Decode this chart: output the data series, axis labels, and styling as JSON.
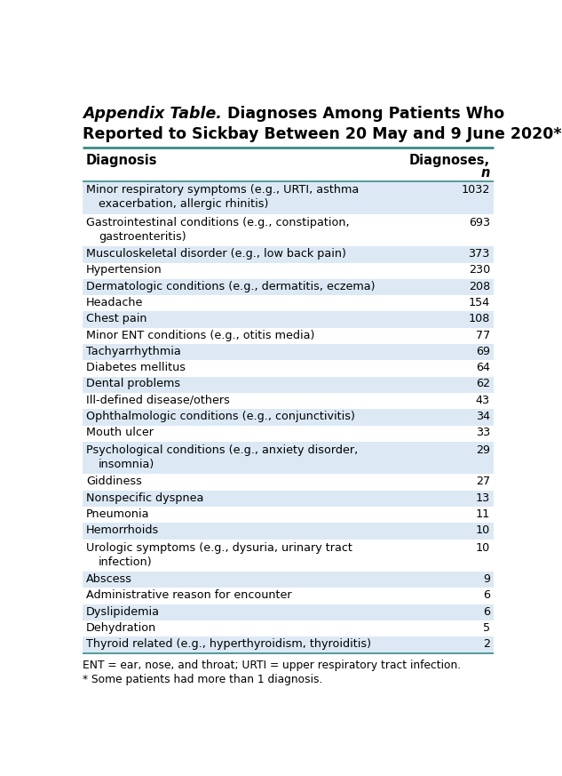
{
  "title_italic": "Appendix Table.",
  "title_regular": " Diagnoses Among Patients Who",
  "title_line2": "Reported to Sickbay Between 20 May and 9 June 2020*",
  "col1_header": "Diagnosis",
  "col2_header_line1": "Diagnoses,",
  "col2_header_line2": "n",
  "rows": [
    {
      "diagnosis": "Minor respiratory symptoms (e.g., URTI, asthma",
      "diagnosis2": "   exacerbation, allergic rhinitis)",
      "n": "1032",
      "shaded": true
    },
    {
      "diagnosis": "Gastrointestinal conditions (e.g., constipation,",
      "diagnosis2": "   gastroenteritis)",
      "n": "693",
      "shaded": false
    },
    {
      "diagnosis": "Musculoskeletal disorder (e.g., low back pain)",
      "diagnosis2": "",
      "n": "373",
      "shaded": true
    },
    {
      "diagnosis": "Hypertension",
      "diagnosis2": "",
      "n": "230",
      "shaded": false
    },
    {
      "diagnosis": "Dermatologic conditions (e.g., dermatitis, eczema)",
      "diagnosis2": "",
      "n": "208",
      "shaded": true
    },
    {
      "diagnosis": "Headache",
      "diagnosis2": "",
      "n": "154",
      "shaded": false
    },
    {
      "diagnosis": "Chest pain",
      "diagnosis2": "",
      "n": "108",
      "shaded": true
    },
    {
      "diagnosis": "Minor ENT conditions (e.g., otitis media)",
      "diagnosis2": "",
      "n": "77",
      "shaded": false
    },
    {
      "diagnosis": "Tachyarrhythmia",
      "diagnosis2": "",
      "n": "69",
      "shaded": true
    },
    {
      "diagnosis": "Diabetes mellitus",
      "diagnosis2": "",
      "n": "64",
      "shaded": false
    },
    {
      "diagnosis": "Dental problems",
      "diagnosis2": "",
      "n": "62",
      "shaded": true
    },
    {
      "diagnosis": "Ill-defined disease/others",
      "diagnosis2": "",
      "n": "43",
      "shaded": false
    },
    {
      "diagnosis": "Ophthalmologic conditions (e.g., conjunctivitis)",
      "diagnosis2": "",
      "n": "34",
      "shaded": true
    },
    {
      "diagnosis": "Mouth ulcer",
      "diagnosis2": "",
      "n": "33",
      "shaded": false
    },
    {
      "diagnosis": "Psychological conditions (e.g., anxiety disorder,",
      "diagnosis2": "   insomnia)",
      "n": "29",
      "shaded": true
    },
    {
      "diagnosis": "Giddiness",
      "diagnosis2": "",
      "n": "27",
      "shaded": false
    },
    {
      "diagnosis": "Nonspecific dyspnea",
      "diagnosis2": "",
      "n": "13",
      "shaded": true
    },
    {
      "diagnosis": "Pneumonia",
      "diagnosis2": "",
      "n": "11",
      "shaded": false
    },
    {
      "diagnosis": "Hemorrhoids",
      "diagnosis2": "",
      "n": "10",
      "shaded": true
    },
    {
      "diagnosis": "Urologic symptoms (e.g., dysuria, urinary tract",
      "diagnosis2": "   infection)",
      "n": "10",
      "shaded": false
    },
    {
      "diagnosis": "Abscess",
      "diagnosis2": "",
      "n": "9",
      "shaded": true
    },
    {
      "diagnosis": "Administrative reason for encounter",
      "diagnosis2": "",
      "n": "6",
      "shaded": false
    },
    {
      "diagnosis": "Dyslipidemia",
      "diagnosis2": "",
      "n": "6",
      "shaded": true
    },
    {
      "diagnosis": "Dehydration",
      "diagnosis2": "",
      "n": "5",
      "shaded": false
    },
    {
      "diagnosis": "Thyroid related (e.g., hyperthyroidism, thyroiditis)",
      "diagnosis2": "",
      "n": "2",
      "shaded": true
    }
  ],
  "footer_line1": "ENT = ear, nose, and throat; URTI = upper respiratory tract infection.",
  "footer_line2": "* Some patients had more than 1 diagnosis.",
  "shaded_color": "#dce9f5",
  "white_color": "#ffffff",
  "border_color": "#3a8a8a",
  "text_color": "#000000",
  "font_size": 9.2,
  "header_font_size": 10.5,
  "title_font_size": 12.5
}
